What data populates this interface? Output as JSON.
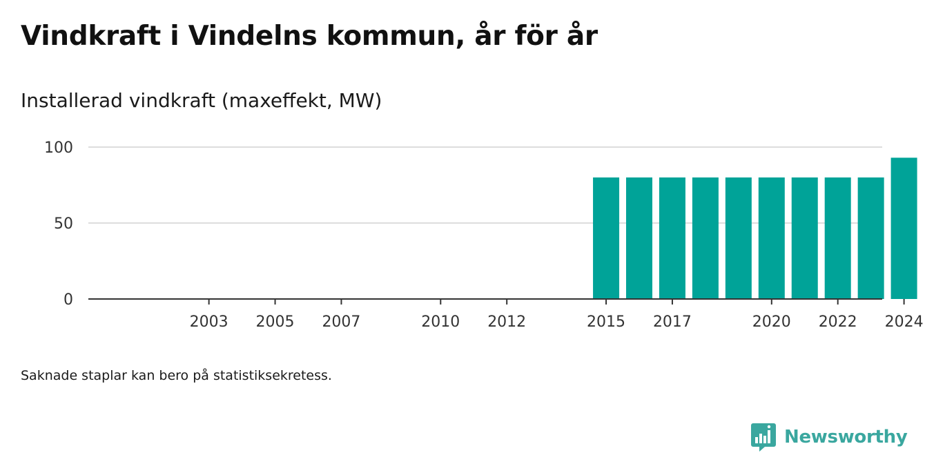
{
  "header": {
    "title": "Vindkraft i Vindelns kommun, år för år",
    "subtitle": "Installerad vindkraft (maxeffekt, MW)"
  },
  "footer": {
    "note": "Saknade staplar kan bero på statistiksekretess.",
    "brand": "Newsworthy"
  },
  "chart_data": {
    "type": "bar",
    "title": "Vindkraft i Vindelns kommun, år för år",
    "subtitle": "Installerad vindkraft (maxeffekt, MW)",
    "xlabel": "",
    "ylabel": "",
    "categories": [
      "2000",
      "2001",
      "2002",
      "2003",
      "2004",
      "2005",
      "2006",
      "2007",
      "2008",
      "2009",
      "2010",
      "2011",
      "2012",
      "2013",
      "2014",
      "2015",
      "2016",
      "2017",
      "2018",
      "2019",
      "2020",
      "2021",
      "2022",
      "2023",
      "2024"
    ],
    "values": [
      0,
      0,
      0,
      0,
      0,
      0,
      0,
      0,
      0,
      0,
      0,
      0,
      0,
      0,
      0,
      80,
      80,
      80,
      80,
      80,
      80,
      80,
      80,
      80,
      93
    ],
    "x_tick_labels": [
      "2003",
      "2005",
      "2007",
      "2010",
      "2012",
      "2015",
      "2017",
      "2020",
      "2022",
      "2024"
    ],
    "y_ticks": [
      "0",
      "50",
      "100"
    ],
    "ylim": [
      0,
      100
    ],
    "grid": true,
    "legend": "none",
    "bar_color": "#00a398",
    "gridline_color": "#dddddd",
    "axis_color": "#333333"
  }
}
